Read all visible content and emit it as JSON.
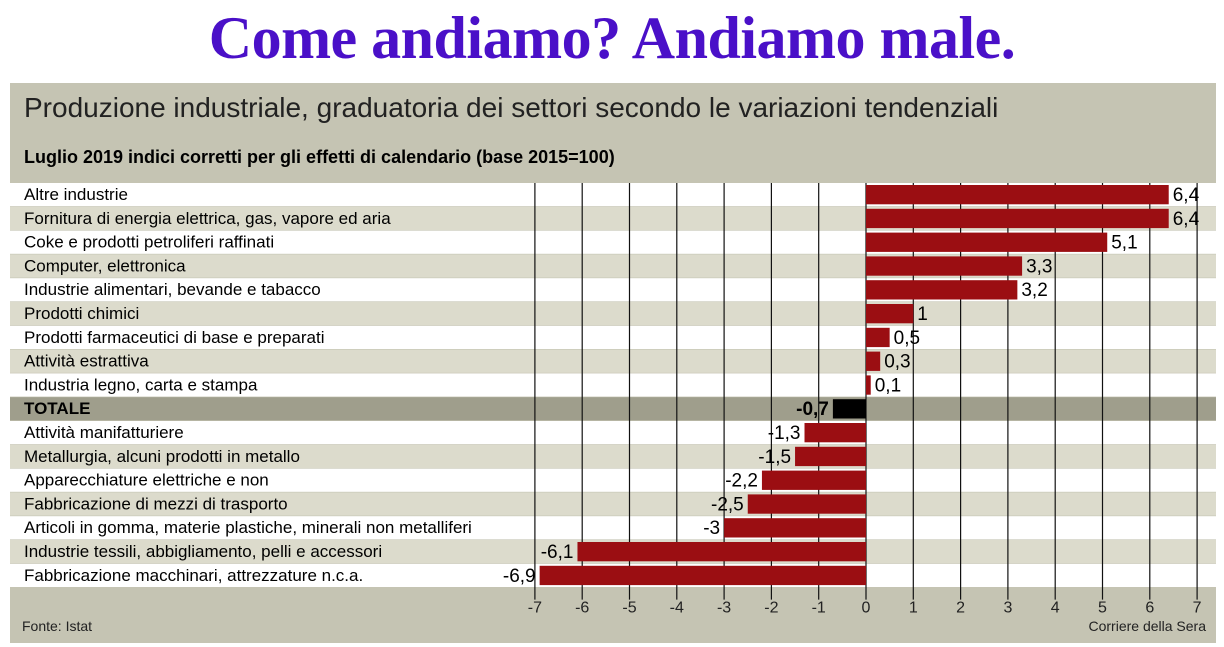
{
  "headline": "Come andiamo? Andiamo male.",
  "subtitle": "Produzione industriale, graduatoria dei settori secondo le variazioni tendenziali",
  "period_note": "Luglio 2019 indici corretti per gli effetti di calendario (base 2015=100)",
  "source": "Fonte: Istat",
  "credit": "Corriere della Sera",
  "colors": {
    "bar": "#9b0e12",
    "total_bar": "#000000",
    "panel": "#c5c4b3",
    "headline": "#4a10c8"
  },
  "chart_data": {
    "type": "bar",
    "orientation": "horizontal",
    "title": "Produzione industriale, graduatoria dei settori secondo le variazioni tendenziali",
    "xlim": [
      -7,
      7
    ],
    "xticks": [
      "-7",
      "-6",
      "-5",
      "-4",
      "-3",
      "-2",
      "-1",
      "0",
      "1",
      "2",
      "3",
      "4",
      "5",
      "6",
      "7"
    ],
    "grid": true,
    "categories": [
      "Altre industrie",
      "Fornitura di energia elettrica, gas, vapore ed aria",
      "Coke e prodotti petroliferi raffinati",
      "Computer, elettronica",
      "Industrie alimentari, bevande e tabacco",
      "Prodotti chimici",
      "Prodotti farmaceutici di base e preparati",
      "Attività estrattiva",
      "Industria legno, carta e stampa",
      "TOTALE",
      "Attività manifatturiere",
      "Metallurgia, alcuni prodotti in metallo",
      "Apparecchiature elettriche e non",
      "Fabbricazione di mezzi di trasporto",
      "Articoli in gomma, materie plastiche, minerali non metalliferi",
      "Industrie tessili, abbigliamento, pelli e accessori",
      "Fabbricazione macchinari, attrezzature n.c.a."
    ],
    "values": [
      6.4,
      6.4,
      5.1,
      3.3,
      3.2,
      1,
      0.5,
      0.3,
      0.1,
      -0.7,
      -1.3,
      -1.5,
      -2.2,
      -2.5,
      -3,
      -6.1,
      -6.9
    ],
    "value_labels": [
      "6,4",
      "6,4",
      "5,1",
      "3,3",
      "3,2",
      "1",
      "0,5",
      "0,3",
      "0,1",
      "-0,7",
      "-1,3",
      "-1,5",
      "-2,2",
      "-2,5",
      "-3",
      "-6,1",
      "-6,9"
    ],
    "highlight_category": "TOTALE"
  }
}
